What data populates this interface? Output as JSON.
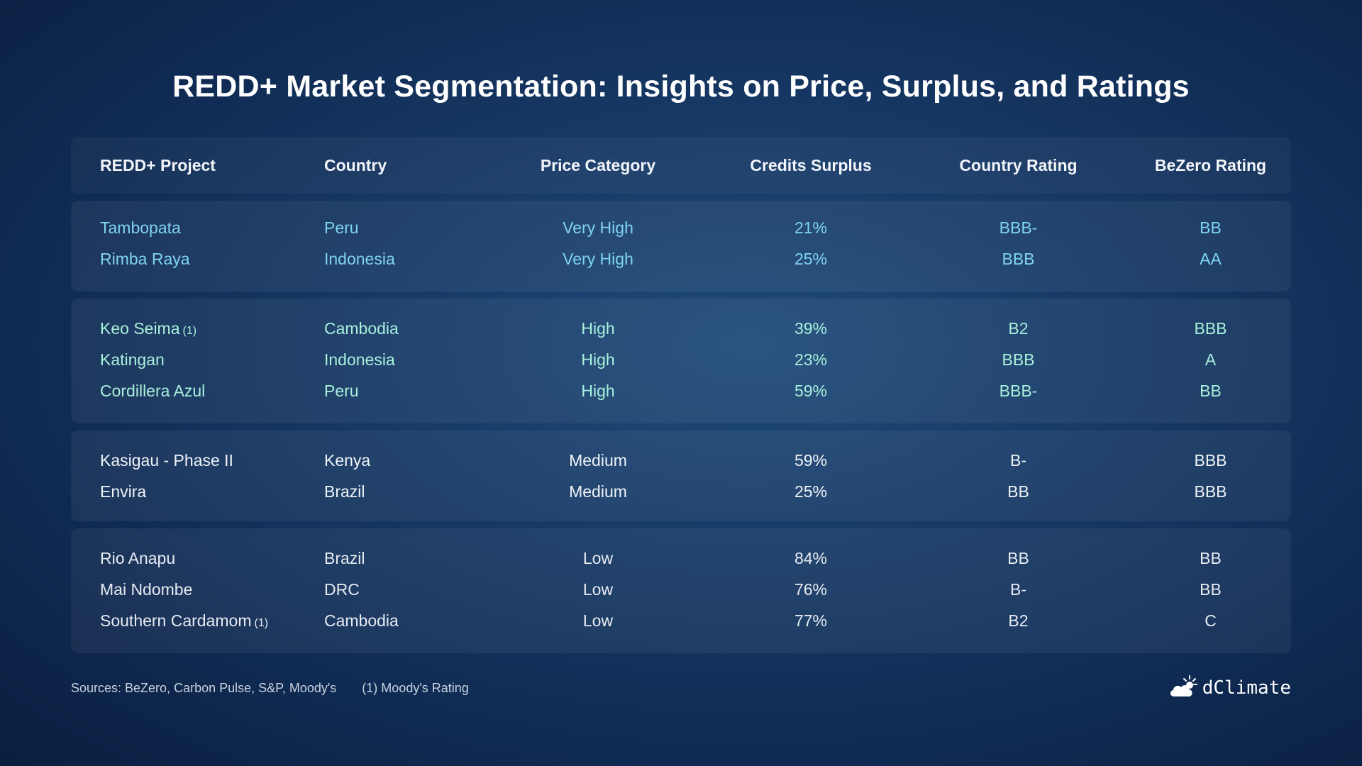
{
  "title": "REDD+ Market Segmentation: Insights on Price, Surplus, and Ratings",
  "table": {
    "headers": [
      "REDD+ Project",
      "Country",
      "Price Category",
      "Credits Surplus",
      "Country Rating",
      "BeZero Rating"
    ],
    "groups": [
      {
        "rows": [
          {
            "project": "Tambopata",
            "note": "",
            "country": "Peru",
            "price": "Very High",
            "surplus": "21%",
            "country_rating": "BBB-",
            "bezero": "BB"
          },
          {
            "project": "Rimba Raya",
            "note": "",
            "country": "Indonesia",
            "price": "Very High",
            "surplus": "25%",
            "country_rating": "BBB",
            "bezero": "AA"
          }
        ]
      },
      {
        "rows": [
          {
            "project": "Keo Seima",
            "note": "(1)",
            "country": "Cambodia",
            "price": "High",
            "surplus": "39%",
            "country_rating": "B2",
            "bezero": "BBB"
          },
          {
            "project": "Katingan",
            "note": "",
            "country": "Indonesia",
            "price": "High",
            "surplus": "23%",
            "country_rating": "BBB",
            "bezero": "A"
          },
          {
            "project": "Cordillera Azul",
            "note": "",
            "country": "Peru",
            "price": "High",
            "surplus": "59%",
            "country_rating": "BBB-",
            "bezero": "BB"
          }
        ]
      },
      {
        "rows": [
          {
            "project": "Kasigau - Phase II",
            "note": "",
            "country": "Kenya",
            "price": "Medium",
            "surplus": "59%",
            "country_rating": "B-",
            "bezero": "BBB"
          },
          {
            "project": "Envira",
            "note": "",
            "country": "Brazil",
            "price": "Medium",
            "surplus": "25%",
            "country_rating": "BB",
            "bezero": "BBB"
          }
        ]
      },
      {
        "rows": [
          {
            "project": "Rio Anapu",
            "note": "",
            "country": "Brazil",
            "price": "Low",
            "surplus": "84%",
            "country_rating": "BB",
            "bezero": "BB"
          },
          {
            "project": "Mai Ndombe",
            "note": "",
            "country": "DRC",
            "price": "Low",
            "surplus": "76%",
            "country_rating": "B-",
            "bezero": "BB"
          },
          {
            "project": "Southern Cardamom",
            "note": "(1)",
            "country": "Cambodia",
            "price": "Low",
            "surplus": "77%",
            "country_rating": "B2",
            "bezero": "C"
          }
        ]
      }
    ]
  },
  "footer": {
    "sources": "Sources: BeZero, Carbon Pulse, S&P, Moody's",
    "note": "(1) Moody's Rating"
  },
  "logo": {
    "text": "dClimate",
    "icon": "cloud-sun-icon"
  },
  "colors": {
    "very_high": "#7fd3f0",
    "high": "#a8f0dc",
    "medium": "#eef3f8",
    "low": "#e6ebf2"
  }
}
